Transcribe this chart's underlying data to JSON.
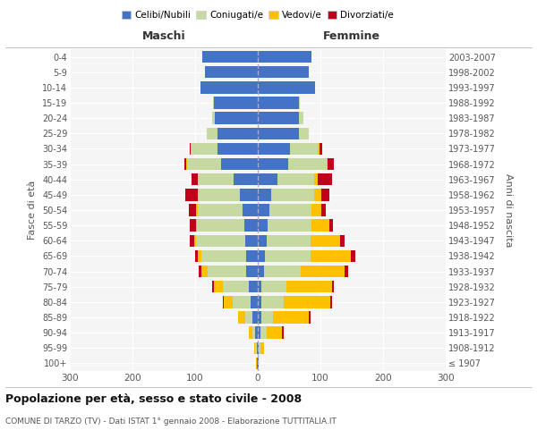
{
  "age_groups": [
    "100+",
    "95-99",
    "90-94",
    "85-89",
    "80-84",
    "75-79",
    "70-74",
    "65-69",
    "60-64",
    "55-59",
    "50-54",
    "45-49",
    "40-44",
    "35-39",
    "30-34",
    "25-29",
    "20-24",
    "15-19",
    "10-14",
    "5-9",
    "0-4"
  ],
  "birth_years": [
    "≤ 1907",
    "1908-1912",
    "1913-1917",
    "1918-1922",
    "1923-1927",
    "1928-1932",
    "1933-1937",
    "1938-1942",
    "1943-1947",
    "1948-1952",
    "1953-1957",
    "1958-1962",
    "1963-1967",
    "1968-1972",
    "1973-1977",
    "1978-1982",
    "1983-1987",
    "1988-1992",
    "1993-1997",
    "1998-2002",
    "2003-2007"
  ],
  "males": {
    "celibi": [
      2,
      2,
      4,
      8,
      12,
      14,
      18,
      18,
      20,
      22,
      24,
      28,
      38,
      58,
      65,
      65,
      68,
      70,
      92,
      85,
      88
    ],
    "coniugati": [
      0,
      2,
      5,
      12,
      28,
      42,
      62,
      72,
      78,
      75,
      72,
      68,
      58,
      55,
      42,
      16,
      5,
      2,
      0,
      0,
      0
    ],
    "vedovi": [
      1,
      2,
      6,
      12,
      14,
      14,
      10,
      6,
      4,
      2,
      2,
      0,
      0,
      1,
      0,
      0,
      0,
      0,
      0,
      0,
      0
    ],
    "divorziati": [
      0,
      0,
      0,
      0,
      2,
      3,
      4,
      4,
      6,
      10,
      12,
      20,
      10,
      3,
      2,
      0,
      0,
      0,
      0,
      0,
      0
    ]
  },
  "females": {
    "nubili": [
      1,
      2,
      4,
      6,
      6,
      6,
      10,
      12,
      14,
      16,
      18,
      22,
      32,
      48,
      52,
      65,
      65,
      65,
      92,
      82,
      85
    ],
    "coniugate": [
      0,
      2,
      10,
      18,
      35,
      40,
      58,
      72,
      70,
      70,
      68,
      68,
      58,
      62,
      44,
      16,
      8,
      2,
      0,
      0,
      0
    ],
    "vedove": [
      0,
      6,
      25,
      58,
      75,
      72,
      70,
      65,
      48,
      28,
      16,
      12,
      6,
      2,
      2,
      0,
      0,
      0,
      0,
      0,
      0
    ],
    "divorziate": [
      0,
      0,
      2,
      2,
      2,
      3,
      6,
      6,
      6,
      6,
      6,
      12,
      22,
      10,
      5,
      0,
      0,
      0,
      0,
      0,
      0
    ]
  },
  "color_celibi": "#4472c4",
  "color_coniugati": "#c5d9a0",
  "color_vedovi": "#ffc000",
  "color_divorziati": "#c0001a",
  "xlim": 300,
  "title": "Popolazione per età, sesso e stato civile - 2008",
  "subtitle": "COMUNE DI TARZO (TV) - Dati ISTAT 1° gennaio 2008 - Elaborazione TUTTITALIA.IT",
  "ylabel_left": "Fasce di età",
  "ylabel_right": "Anni di nascita",
  "legend_labels": [
    "Celibi/Nubili",
    "Coniugati/e",
    "Vedovi/e",
    "Divorziati/e"
  ],
  "maschi_label": "Maschi",
  "femmine_label": "Femmine",
  "bg_color": "#f5f5f5"
}
